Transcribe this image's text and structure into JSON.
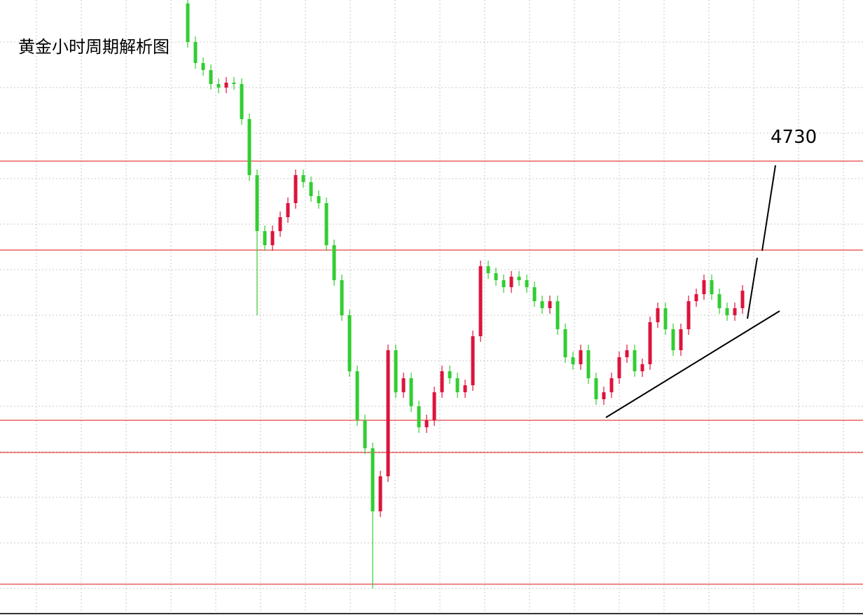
{
  "chart_data": {
    "type": "candlestick",
    "title": "黄金小时周期解析图",
    "target": 4730,
    "ylim": [
      4568,
      4787.5
    ],
    "up_color": "#dc143c",
    "down_color": "#32cd32",
    "level_color": "#e01010",
    "levels": [
      4730,
      4698.25,
      4637.5,
      4626,
      4579
    ],
    "ohlc": [
      [
        4786.25,
        4788.25,
        4770.5,
        4772.5
      ],
      [
        4772.5,
        4774.5,
        4763,
        4765
      ],
      [
        4765,
        4767,
        4760.5,
        4762.5
      ],
      [
        4762.5,
        4764.5,
        4755.5,
        4757.5
      ],
      [
        4757.5,
        4759.5,
        4754.25,
        4756.25
      ],
      [
        4756.25,
        4760,
        4754.25,
        4758
      ],
      [
        4758,
        4760,
        4755.5,
        4757.5
      ],
      [
        4757.5,
        4759.5,
        4743,
        4745
      ],
      [
        4745,
        4747,
        4723,
        4725
      ],
      [
        4725,
        4727,
        4675,
        4705
      ],
      [
        4705,
        4707,
        4698,
        4700
      ],
      [
        4700,
        4707,
        4698,
        4705
      ],
      [
        4705,
        4712,
        4703,
        4710
      ],
      [
        4710,
        4717,
        4708,
        4715
      ],
      [
        4715,
        4727,
        4713,
        4725
      ],
      [
        4725,
        4727,
        4720.5,
        4722.5
      ],
      [
        4722.5,
        4724.5,
        4715.5,
        4717.5
      ],
      [
        4717.5,
        4719.5,
        4713,
        4715
      ],
      [
        4715,
        4717,
        4698,
        4700
      ],
      [
        4700,
        4702,
        4685.5,
        4687.5
      ],
      [
        4687.5,
        4689.5,
        4673,
        4675
      ],
      [
        4675,
        4677,
        4653,
        4655
      ],
      [
        4655,
        4657,
        4635.5,
        4637.5
      ],
      [
        4637.5,
        4639.5,
        4625.5,
        4627.5
      ],
      [
        4627.5,
        4629.5,
        4577.5,
        4605
      ],
      [
        4605,
        4619.5,
        4603,
        4617.5
      ],
      [
        4617.5,
        4664.5,
        4615.5,
        4662.5
      ],
      [
        4662.5,
        4664.5,
        4645.5,
        4647.5
      ],
      [
        4647.5,
        4654.5,
        4645.5,
        4652.5
      ],
      [
        4652.5,
        4654.5,
        4640.5,
        4642.5
      ],
      [
        4642.5,
        4644.5,
        4633,
        4635
      ],
      [
        4635,
        4639.5,
        4633,
        4637.5
      ],
      [
        4637.5,
        4649.5,
        4635.5,
        4647.5
      ],
      [
        4647.5,
        4657,
        4645.5,
        4655
      ],
      [
        4655,
        4657,
        4650.5,
        4652.5
      ],
      [
        4652.5,
        4654.5,
        4645.5,
        4647.5
      ],
      [
        4647.5,
        4652,
        4645.5,
        4650
      ],
      [
        4650,
        4669.5,
        4648,
        4667.5
      ],
      [
        4667.5,
        4694.5,
        4665.5,
        4692.5
      ],
      [
        4692.5,
        4694.5,
        4688,
        4690
      ],
      [
        4690,
        4692,
        4685.5,
        4687.5
      ],
      [
        4687.5,
        4689.5,
        4683,
        4685
      ],
      [
        4685,
        4690.75,
        4683,
        4688.75
      ],
      [
        4688.75,
        4690.75,
        4685.5,
        4687.5
      ],
      [
        4687.5,
        4689.5,
        4683,
        4685
      ],
      [
        4685,
        4687,
        4678,
        4680
      ],
      [
        4680,
        4682,
        4675.5,
        4677.5
      ],
      [
        4677.5,
        4682,
        4675.5,
        4680
      ],
      [
        4680,
        4682,
        4668,
        4670
      ],
      [
        4670,
        4672,
        4658,
        4660
      ],
      [
        4660,
        4662,
        4655.5,
        4657.5
      ],
      [
        4657.5,
        4664.5,
        4655.5,
        4662.5
      ],
      [
        4662.5,
        4664.5,
        4650.5,
        4652.5
      ],
      [
        4652.5,
        4654.5,
        4643,
        4645
      ],
      [
        4645,
        4649.5,
        4643,
        4647.5
      ],
      [
        4647.5,
        4654.5,
        4645.5,
        4652.5
      ],
      [
        4652.5,
        4662,
        4650.5,
        4660
      ],
      [
        4660,
        4664.5,
        4658,
        4662.5
      ],
      [
        4662.5,
        4664.5,
        4653,
        4655
      ],
      [
        4655,
        4659.5,
        4653,
        4657.5
      ],
      [
        4657.5,
        4674.5,
        4655.5,
        4672.5
      ],
      [
        4672.5,
        4679.5,
        4670.5,
        4677.5
      ],
      [
        4677.5,
        4679.5,
        4668,
        4670
      ],
      [
        4670,
        4672,
        4660.5,
        4662.5
      ],
      [
        4662.5,
        4672,
        4660.5,
        4670
      ],
      [
        4670,
        4682,
        4668,
        4680
      ],
      [
        4680,
        4684.5,
        4678,
        4682.5
      ],
      [
        4682.5,
        4689.5,
        4680.5,
        4687.5
      ],
      [
        4687.5,
        4689.5,
        4680.5,
        4682.5
      ],
      [
        4682.5,
        4684.5,
        4675.5,
        4677.5
      ],
      [
        4677.5,
        4679.5,
        4673,
        4675
      ],
      [
        4675,
        4679.5,
        4673,
        4677.5
      ],
      [
        4677.5,
        4685.75,
        4675.5,
        4683.75
      ]
    ]
  }
}
